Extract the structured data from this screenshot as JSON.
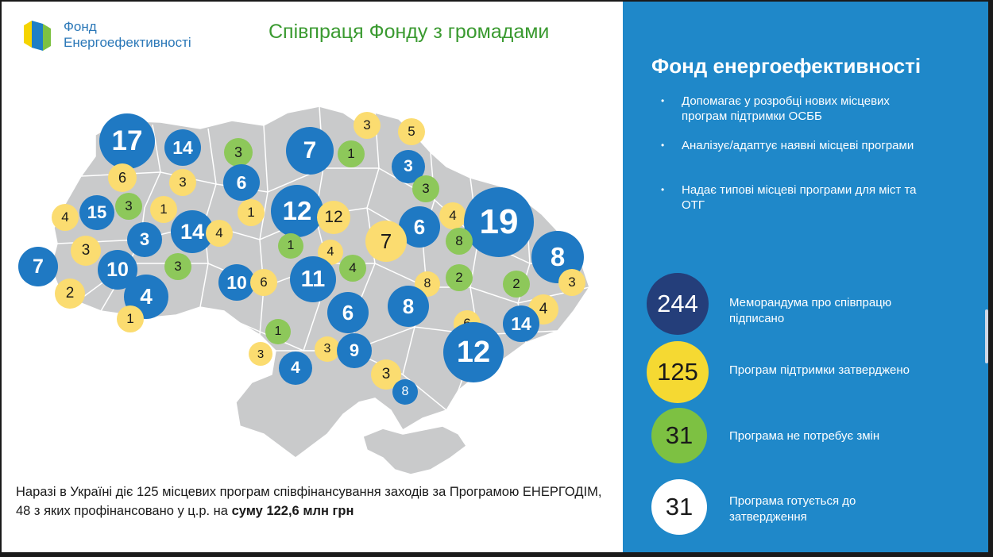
{
  "header": {
    "logo_line1": "Фонд",
    "logo_line2": "Енергоефективності",
    "title": "Співпраця Фонду з громадами"
  },
  "panel": {
    "title": "Фонд енергоефективності",
    "bullets": [
      "Допомагає у розробці нових місцевих програм підтримки ОСББ",
      "Аналізує/адаптує наявні місцеві програми",
      "Надає типові місцеві програми для міст та ОТГ"
    ],
    "stats": [
      {
        "value": "244",
        "label": "Меморандума  про співпрацю підписано",
        "color": "#243e7a",
        "text_color": "#ffffff"
      },
      {
        "value": "125",
        "label": "Програм підтримки затверджено",
        "color": "#f5d932",
        "text_color": "#1a1a1a"
      },
      {
        "value": "31",
        "label": "Програма не потребує змін",
        "color": "#7dc142",
        "text_color": "#1a1a1a"
      },
      {
        "value": "31",
        "label": "Програма готується до затвердження",
        "color": "#ffffff",
        "text_color": "#1a1a1a"
      }
    ]
  },
  "bottom_text": {
    "part1": "Наразі в Україні діє 125 місцевих програм співфінансування заходів за Програмою ЕНЕРГОДІМ, 48 з яких профінансовано у ц.р. на ",
    "bold": "суму 122,6 млн грн"
  },
  "colors": {
    "panel_bg": "#1f88c9",
    "map_region": "#c9cacb",
    "bubble_blue": "#1f79c3",
    "bubble_yellow": "#fbdc70",
    "bubble_green": "#8dc85a",
    "title_green": "#3a9a30"
  },
  "map_bubbles": [
    {
      "v": "17",
      "c": "blue"
    },
    {
      "v": "14",
      "c": "blue"
    },
    {
      "v": "6",
      "c": "yellow"
    },
    {
      "v": "3",
      "c": "yellow"
    },
    {
      "v": "3",
      "c": "green"
    },
    {
      "v": "6",
      "c": "blue"
    },
    {
      "v": "7",
      "c": "blue"
    },
    {
      "v": "1",
      "c": "green"
    },
    {
      "v": "3",
      "c": "yellow"
    },
    {
      "v": "5",
      "c": "yellow"
    },
    {
      "v": "3",
      "c": "blue"
    },
    {
      "v": "3",
      "c": "green"
    },
    {
      "v": "4",
      "c": "yellow"
    },
    {
      "v": "15",
      "c": "blue"
    },
    {
      "v": "3",
      "c": "green"
    },
    {
      "v": "1",
      "c": "yellow"
    },
    {
      "v": "14",
      "c": "blue"
    },
    {
      "v": "4",
      "c": "yellow"
    },
    {
      "v": "1",
      "c": "yellow"
    },
    {
      "v": "12",
      "c": "blue"
    },
    {
      "v": "12",
      "c": "yellow"
    },
    {
      "v": "6",
      "c": "blue"
    },
    {
      "v": "4",
      "c": "yellow"
    },
    {
      "v": "19",
      "c": "blue"
    },
    {
      "v": "3",
      "c": "yellow"
    },
    {
      "v": "3",
      "c": "blue"
    },
    {
      "v": "1",
      "c": "green"
    },
    {
      "v": "4",
      "c": "yellow"
    },
    {
      "v": "7",
      "c": "yellow"
    },
    {
      "v": "8",
      "c": "green"
    },
    {
      "v": "8",
      "c": "blue"
    },
    {
      "v": "7",
      "c": "blue"
    },
    {
      "v": "10",
      "c": "blue"
    },
    {
      "v": "3",
      "c": "green"
    },
    {
      "v": "11",
      "c": "blue"
    },
    {
      "v": "4",
      "c": "green"
    },
    {
      "v": "10",
      "c": "blue"
    },
    {
      "v": "6",
      "c": "yellow"
    },
    {
      "v": "2",
      "c": "yellow"
    },
    {
      "v": "4",
      "c": "blue"
    },
    {
      "v": "1",
      "c": "yellow"
    },
    {
      "v": "8",
      "c": "yellow"
    },
    {
      "v": "2",
      "c": "green"
    },
    {
      "v": "8",
      "c": "blue"
    },
    {
      "v": "2",
      "c": "green"
    },
    {
      "v": "3",
      "c": "yellow"
    },
    {
      "v": "6",
      "c": "blue"
    },
    {
      "v": "4",
      "c": "yellow"
    },
    {
      "v": "14",
      "c": "blue"
    },
    {
      "v": "6",
      "c": "yellow"
    },
    {
      "v": "12",
      "c": "blue"
    },
    {
      "v": "1",
      "c": "green"
    },
    {
      "v": "3",
      "c": "yellow"
    },
    {
      "v": "4",
      "c": "blue"
    },
    {
      "v": "3",
      "c": "yellow"
    },
    {
      "v": "9",
      "c": "blue"
    },
    {
      "v": "3",
      "c": "yellow"
    },
    {
      "v": "8",
      "c": "blue"
    }
  ]
}
